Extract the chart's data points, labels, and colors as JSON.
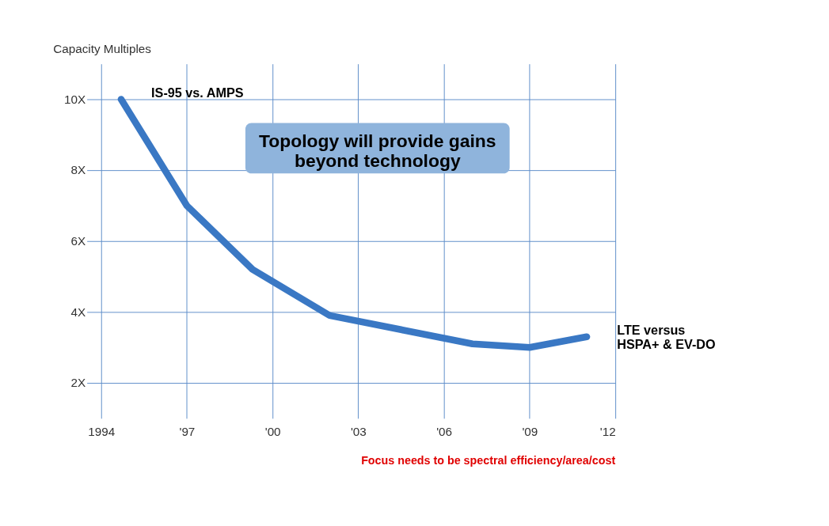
{
  "chart_data": {
    "type": "line",
    "ylabel": "Capacity Multiples",
    "x": [
      1994.7,
      1997,
      1999.3,
      2002,
      2004.5,
      2007,
      2009,
      2011
    ],
    "series": [
      {
        "color": "#3a78c4",
        "values": [
          10,
          7,
          5.2,
          3.9,
          3.5,
          3.1,
          3.0,
          3.3
        ]
      }
    ],
    "xlim": [
      1993.5,
      2012
    ],
    "ylim": [
      1,
      11
    ],
    "xticks": [
      {
        "value": 1994,
        "label": "1994"
      },
      {
        "value": 1997,
        "label": "'97"
      },
      {
        "value": 2000,
        "label": "'00"
      },
      {
        "value": 2003,
        "label": "'03"
      },
      {
        "value": 2006,
        "label": "'06"
      },
      {
        "value": 2009,
        "label": "'09"
      },
      {
        "value": 2012,
        "label": "'12"
      }
    ],
    "yticks": [
      {
        "value": 2,
        "label": "2X"
      },
      {
        "value": 4,
        "label": "4X"
      },
      {
        "value": 6,
        "label": "6X"
      },
      {
        "value": 8,
        "label": "8X"
      },
      {
        "value": 10,
        "label": "10X"
      }
    ],
    "grid": true,
    "line_style": "solid",
    "annotations": [
      {
        "text": "IS-95 vs. AMPS",
        "x": 1994.7,
        "y": 10
      },
      {
        "text": "LTE versus\nHSPA+ & EV-DO",
        "x": 2011,
        "y": 3.3
      },
      "Topology will provide gains\nbeyond technology",
      "Focus needs to be spectral efficiency/area/cost"
    ]
  }
}
